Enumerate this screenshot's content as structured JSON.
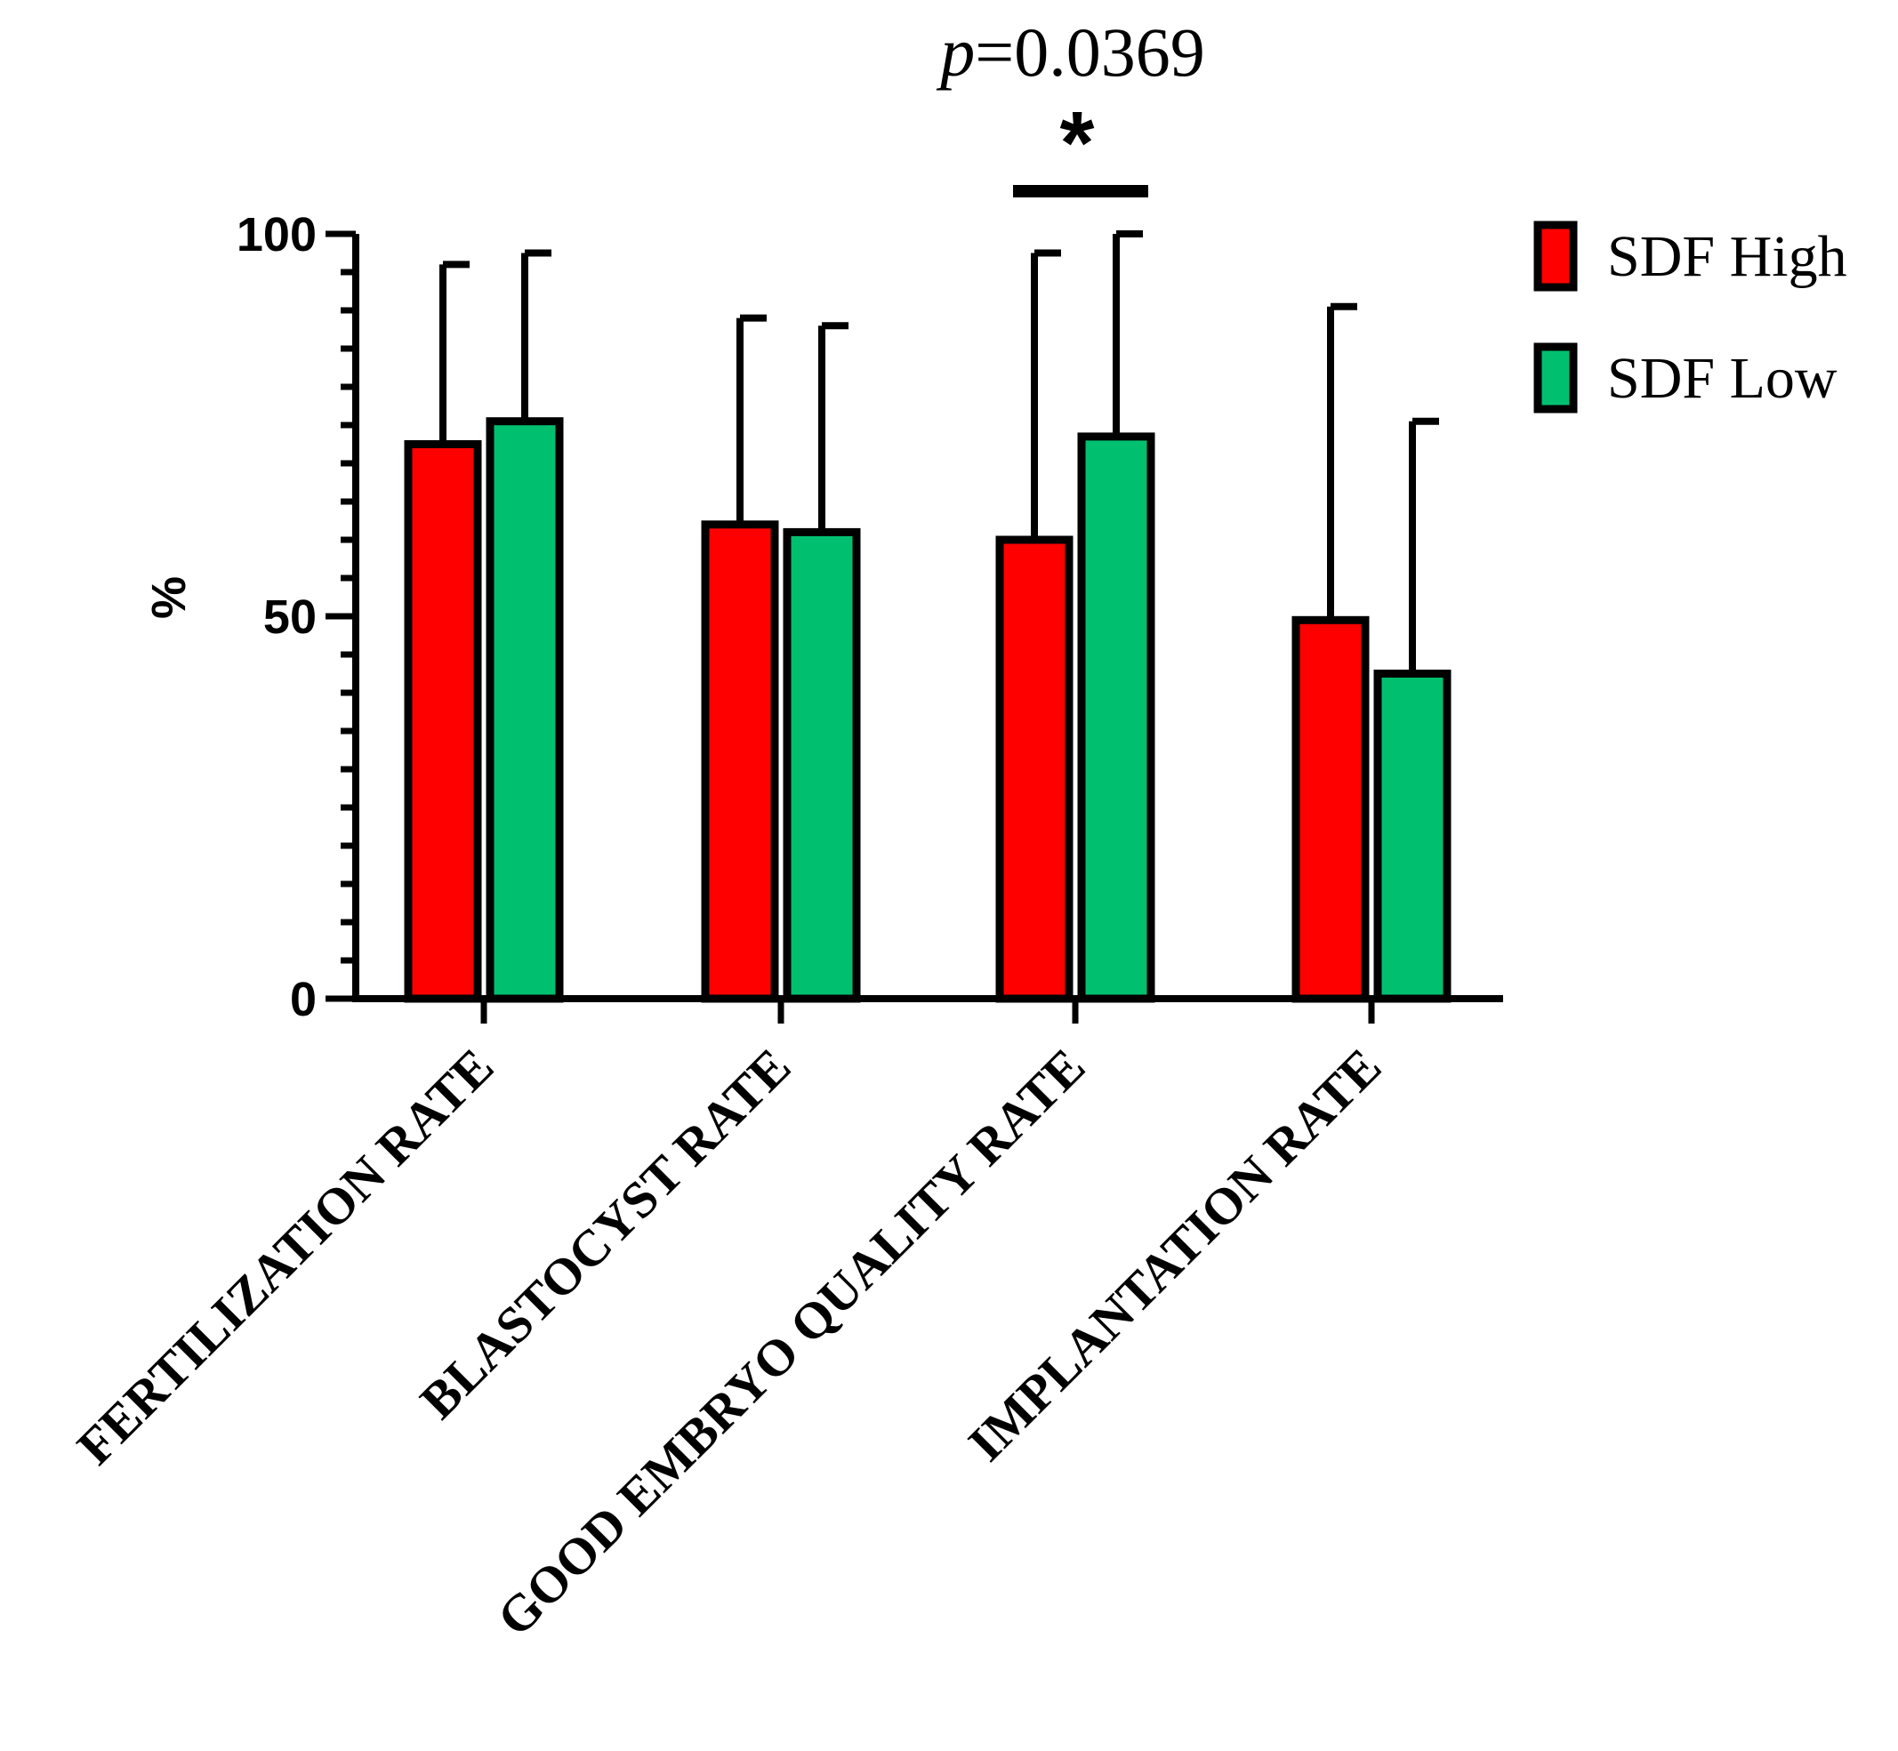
{
  "chart_data": {
    "type": "bar",
    "title": "",
    "xlabel": "",
    "ylabel": "%",
    "ylim": [
      0,
      100
    ],
    "yticks": [
      0,
      50,
      100
    ],
    "y_tick_labels": [
      "0",
      "50",
      "100"
    ],
    "minor_tick_step": 5,
    "categories": [
      "FERTILIZATION RATE",
      "BLASTOCYST RATE",
      "GOOD EMBRYO QUALITY RATE",
      "IMPLANTATION RATE"
    ],
    "series": [
      {
        "name": "SDF High",
        "color": "#ff0000",
        "values": [
          72.5,
          62,
          60,
          49.5
        ],
        "error_upper": [
          96,
          89,
          97.5,
          90.5
        ]
      },
      {
        "name": "SDF Low",
        "color": "#00c070",
        "values": [
          75.5,
          61,
          73.5,
          42.5
        ],
        "error_upper": [
          97.5,
          88,
          100,
          75.5
        ]
      }
    ],
    "legend_position": "top-right",
    "annotations": [
      {
        "category": "GOOD EMBRYO QUALITY RATE",
        "symbol": "*",
        "p_prefix": "p",
        "p_value": "=0.0369"
      }
    ]
  }
}
